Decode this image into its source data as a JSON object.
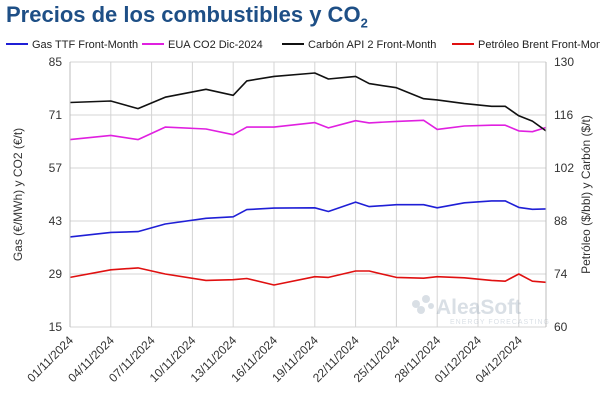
{
  "title": {
    "main": "Precios de los combustibles y CO",
    "sub": "2"
  },
  "watermark": {
    "brand": "AleaSoft",
    "tagline": "ENERGY FORECASTING"
  },
  "chart_data": {
    "type": "line",
    "x": [
      "01/11/2024",
      "02/11/2024",
      "03/11/2024",
      "04/11/2024",
      "05/11/2024",
      "06/11/2024",
      "07/11/2024",
      "08/11/2024",
      "09/11/2024",
      "10/11/2024",
      "11/11/2024",
      "12/11/2024",
      "13/11/2024",
      "14/11/2024",
      "15/11/2024",
      "16/11/2024",
      "17/11/2024",
      "18/11/2024",
      "19/11/2024",
      "20/11/2024",
      "21/11/2024",
      "22/11/2024",
      "23/11/2024",
      "24/11/2024",
      "25/11/2024",
      "26/11/2024",
      "27/11/2024",
      "28/11/2024",
      "29/11/2024",
      "30/11/2024",
      "01/12/2024",
      "02/12/2024",
      "03/12/2024",
      "04/12/2024",
      "05/12/2024",
      "06/12/2024"
    ],
    "xticks": [
      "01/11/2024",
      "04/11/2024",
      "07/11/2024",
      "10/11/2024",
      "13/11/2024",
      "16/11/2024",
      "19/11/2024",
      "22/11/2024",
      "25/11/2024",
      "28/11/2024",
      "01/12/2024",
      "04/12/2024"
    ],
    "y_left": {
      "label": "Gas (€/MWh) y CO2 (€/t)",
      "range": [
        15,
        85
      ],
      "ticks": [
        15,
        29,
        43,
        57,
        71,
        85
      ]
    },
    "y_right": {
      "label": "Petróleo ($/bbl) y Carbón ($/t)",
      "range": [
        60,
        130
      ],
      "ticks": [
        60,
        74,
        88,
        102,
        116,
        130
      ]
    },
    "grid": true,
    "legend_position": "top",
    "series": [
      {
        "name": "Gas TTF Front-Month",
        "color": "#1f1fd6",
        "axis": "left",
        "values": [
          38.8,
          null,
          null,
          40.0,
          null,
          40.2,
          null,
          42.2,
          null,
          null,
          43.7,
          null,
          44.1,
          46.0,
          null,
          46.4,
          null,
          null,
          46.5,
          45.5,
          null,
          48.0,
          46.8,
          null,
          47.3,
          null,
          47.3,
          46.5,
          null,
          47.8,
          null,
          48.3,
          48.3,
          46.6,
          46.1,
          46.2
        ]
      },
      {
        "name": "EUA CO2 Dic-2024",
        "color": "#e020e0",
        "axis": "left",
        "values": [
          64.5,
          null,
          null,
          65.6,
          null,
          64.5,
          null,
          67.8,
          null,
          null,
          67.3,
          null,
          65.8,
          67.8,
          null,
          67.8,
          null,
          null,
          69.0,
          67.6,
          null,
          69.5,
          68.9,
          null,
          69.3,
          null,
          69.6,
          67.2,
          null,
          68.1,
          null,
          68.3,
          68.3,
          66.8,
          66.6,
          67.7
        ]
      },
      {
        "name": "Carbón API 2 Front-Month",
        "color": "#111111",
        "axis": "right",
        "values": [
          119.3,
          null,
          null,
          119.7,
          null,
          117.7,
          null,
          120.7,
          null,
          null,
          122.8,
          null,
          121.2,
          125.0,
          null,
          126.2,
          null,
          null,
          127.1,
          125.5,
          null,
          126.2,
          124.3,
          null,
          123.2,
          null,
          120.3,
          120.0,
          null,
          119.0,
          null,
          118.3,
          118.3,
          115.8,
          114.4,
          111.8
        ]
      },
      {
        "name": "Petróleo Brent Front-Month",
        "color": "#e01010",
        "axis": "right",
        "values": [
          73.1,
          null,
          null,
          75.1,
          null,
          75.6,
          null,
          74.0,
          null,
          null,
          72.3,
          null,
          72.5,
          72.8,
          null,
          71.1,
          null,
          null,
          73.3,
          73.1,
          null,
          74.8,
          74.8,
          null,
          73.1,
          null,
          72.9,
          73.3,
          null,
          73.0,
          null,
          72.3,
          72.1,
          74.0,
          72.1,
          71.8
        ]
      }
    ]
  }
}
